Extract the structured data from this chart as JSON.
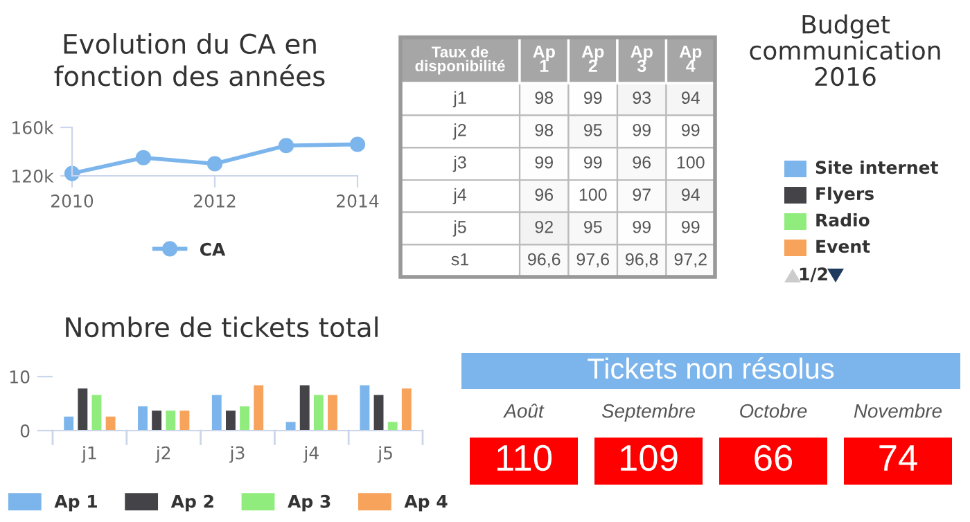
{
  "chart_data": [
    {
      "type": "line",
      "title": "Evolution du CA en\nfonction des années",
      "x": [
        2010,
        2011,
        2012,
        2013,
        2014
      ],
      "series": [
        {
          "name": "CA",
          "color": "#7cb5ec",
          "values": [
            122000,
            135000,
            130000,
            145000,
            146000
          ]
        }
      ],
      "xlim": [
        2010,
        2014
      ],
      "xticks": [
        2010,
        2012,
        2014
      ],
      "ylim": [
        120000,
        160000
      ],
      "yticks": [
        {
          "value": 120000,
          "label": "120k"
        },
        {
          "value": 160000,
          "label": "160k"
        }
      ],
      "marker": "circle",
      "legend": "bottom"
    },
    {
      "type": "heatmap",
      "title": "Taux de disponibilité",
      "categories": [
        "Ap 1",
        "Ap 2",
        "Ap 3",
        "Ap 4"
      ],
      "y_categories": [
        "j1",
        "j2",
        "j3",
        "j4",
        "j5",
        "s1"
      ],
      "cells": [
        [
          98,
          99,
          93,
          94
        ],
        [
          98,
          95,
          99,
          99
        ],
        [
          99,
          99,
          96,
          100
        ],
        [
          96,
          100,
          97,
          94
        ],
        [
          92,
          95,
          99,
          99
        ],
        [
          96.6,
          97.6,
          96.8,
          97.2
        ]
      ],
      "cell_labels": [
        [
          "98",
          "99",
          "93",
          "94"
        ],
        [
          "98",
          "95",
          "99",
          "99"
        ],
        [
          "99",
          "99",
          "96",
          "100"
        ],
        [
          "96",
          "100",
          "97",
          "94"
        ],
        [
          "92",
          "95",
          "99",
          "99"
        ],
        [
          "96,6",
          "97,6",
          "96,8",
          "97,2"
        ]
      ]
    },
    {
      "type": "other",
      "title": "Budget\ncommunication\n2016",
      "categories": [
        "Site internet",
        "Flyers",
        "Radio",
        "Event"
      ],
      "colors": [
        "#7cb5ec",
        "#434348",
        "#90ed7d",
        "#f7a35c"
      ],
      "annotations": [
        "1/2"
      ]
    },
    {
      "type": "bar",
      "title": "Nombre de tickets total",
      "categories": [
        "j1",
        "j2",
        "j3",
        "j4",
        "j5"
      ],
      "series": [
        {
          "name": "Ap 1",
          "color": "#7cb5ec",
          "values": [
            2.6,
            4.5,
            6.6,
            1.6,
            8.4
          ]
        },
        {
          "name": "Ap 2",
          "color": "#434348",
          "values": [
            7.8,
            3.7,
            3.7,
            8.4,
            6.6
          ]
        },
        {
          "name": "Ap 3",
          "color": "#90ed7d",
          "values": [
            6.6,
            3.7,
            4.5,
            6.6,
            1.6
          ]
        },
        {
          "name": "Ap 4",
          "color": "#f7a35c",
          "values": [
            2.6,
            3.7,
            8.4,
            6.6,
            7.8
          ]
        }
      ],
      "ylim": [
        0,
        10
      ],
      "yticks": [
        0,
        10
      ],
      "legend": "bottom"
    },
    {
      "type": "other",
      "title": "Tickets non résolus",
      "categories": [
        "Août",
        "Septembre",
        "Octobre",
        "Novembre"
      ],
      "values": [
        110,
        109,
        66,
        74
      ],
      "colors": [
        "#ff0000",
        "#ff0000",
        "#ff0000",
        "#ff0000"
      ],
      "data_labels": true
    }
  ]
}
